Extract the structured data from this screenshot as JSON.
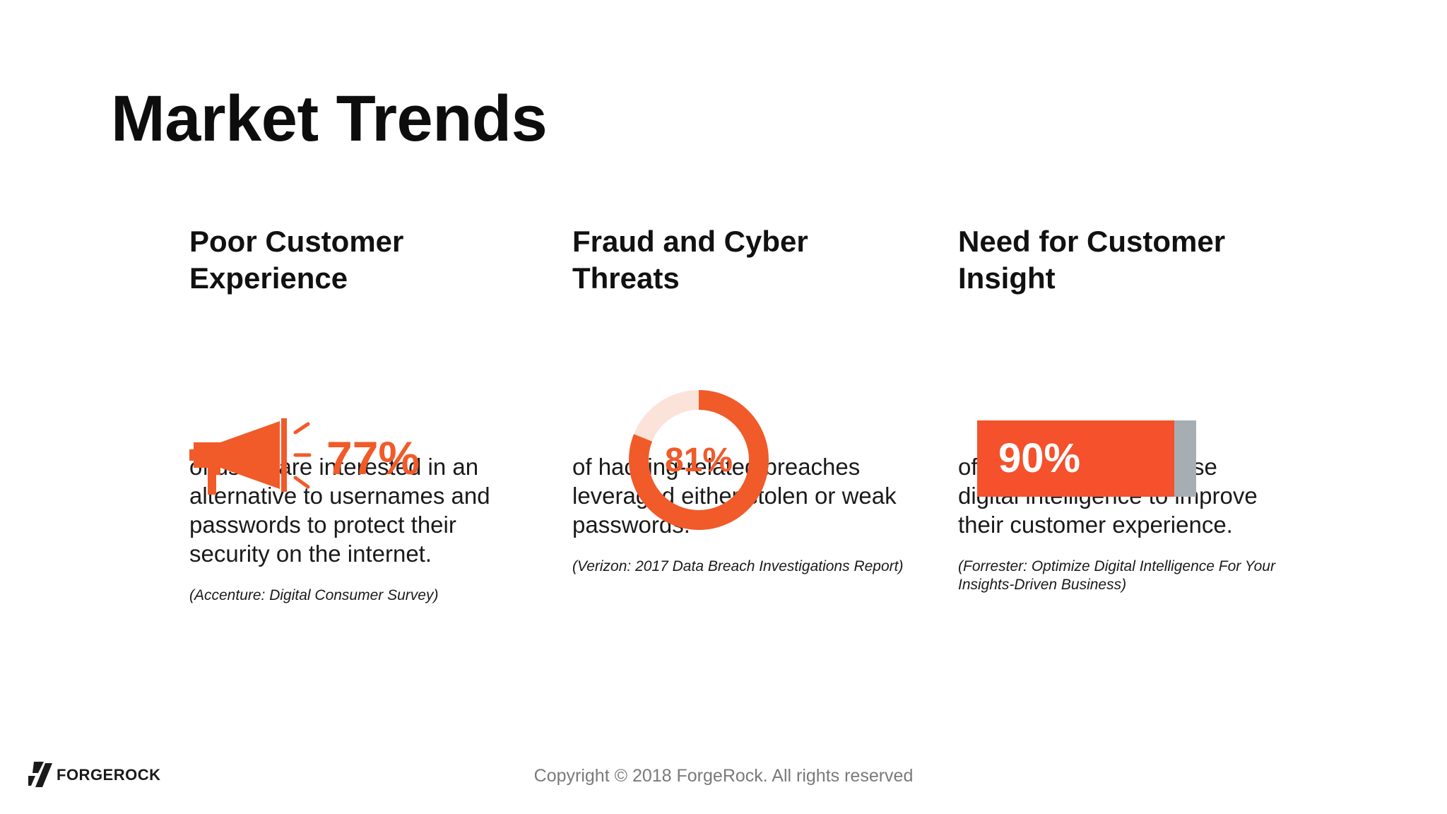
{
  "slide": {
    "title": "Market Trends",
    "accent_color": "#f15a29",
    "bar_track_color": "#a7aeb3"
  },
  "columns": [
    {
      "heading_line1": "Poor Customer",
      "heading_line2": "Experience",
      "icon": "megaphone-icon",
      "stat": "77%",
      "body": "of users are interested in an alternative to usernames and passwords to protect their security on the internet.",
      "source": "(Accenture: Digital Consumer Survey)"
    },
    {
      "heading_line1": "Fraud and Cyber",
      "heading_line2": "Threats",
      "icon": "donut-ring",
      "stat": "81%",
      "stat_value": 81,
      "body": "of hacking-related breaches leveraged either stolen or weak passwords.",
      "source": "(Verizon: 2017 Data Breach Investigations Report)"
    },
    {
      "heading_line1": "Need for Customer",
      "heading_line2": "Insight",
      "icon": "progress-bar",
      "stat": "90%",
      "stat_value": 90,
      "body": "of companies plan to use digital intelligence to improve their customer experience.",
      "source": "(Forrester: Optimize Digital Intelligence For Your Insights-Driven Business)"
    }
  ],
  "footer": {
    "logo_text": "FORGEROCK",
    "copyright": "Copyright © 2018 ForgeRock. All rights reserved"
  }
}
